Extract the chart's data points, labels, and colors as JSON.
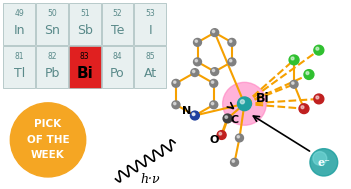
{
  "bg_color": "#ffffff",
  "pt_bg": "#e8f0f0",
  "pt_border": "#a0b8b8",
  "pt_text_color": "#5a8a8a",
  "bi_cell_color": "#e02020",
  "bi_text_color": "#000000",
  "badge_color": "#f5a623",
  "badge_text_color": "#ffffff",
  "elements_row1": [
    {
      "symbol": "In",
      "number": "49",
      "col": 0
    },
    {
      "symbol": "Sn",
      "number": "50",
      "col": 1
    },
    {
      "symbol": "Sb",
      "number": "51",
      "col": 2
    },
    {
      "symbol": "Te",
      "number": "52",
      "col": 3
    },
    {
      "symbol": "I",
      "number": "53",
      "col": 4
    }
  ],
  "elements_row2": [
    {
      "symbol": "Tl",
      "number": "81",
      "col": 0
    },
    {
      "symbol": "Pb",
      "number": "82",
      "col": 1
    },
    {
      "symbol": "Bi",
      "number": "83",
      "col": 2,
      "highlight": true
    },
    {
      "symbol": "Po",
      "number": "84",
      "col": 3
    },
    {
      "symbol": "At",
      "number": "85",
      "col": 4
    }
  ],
  "badge_lines": [
    "PICK",
    "OF THE",
    "WEEK"
  ],
  "hv_text": "h·ν",
  "bi_label": "Bi",
  "n_label": "N",
  "c_label": "C",
  "o_label": "O",
  "eminus_label": "e⁻",
  "orange_color": "#f5a000",
  "gray_atom": "#808080",
  "dark_atom": "#404040",
  "blue_atom": "#2040a0",
  "red_atom": "#c02020",
  "green_atom": "#30c030",
  "teal_atom": "#20a0a0",
  "pink_glow": "#ff80c0",
  "dashed_color": "#f5a000"
}
